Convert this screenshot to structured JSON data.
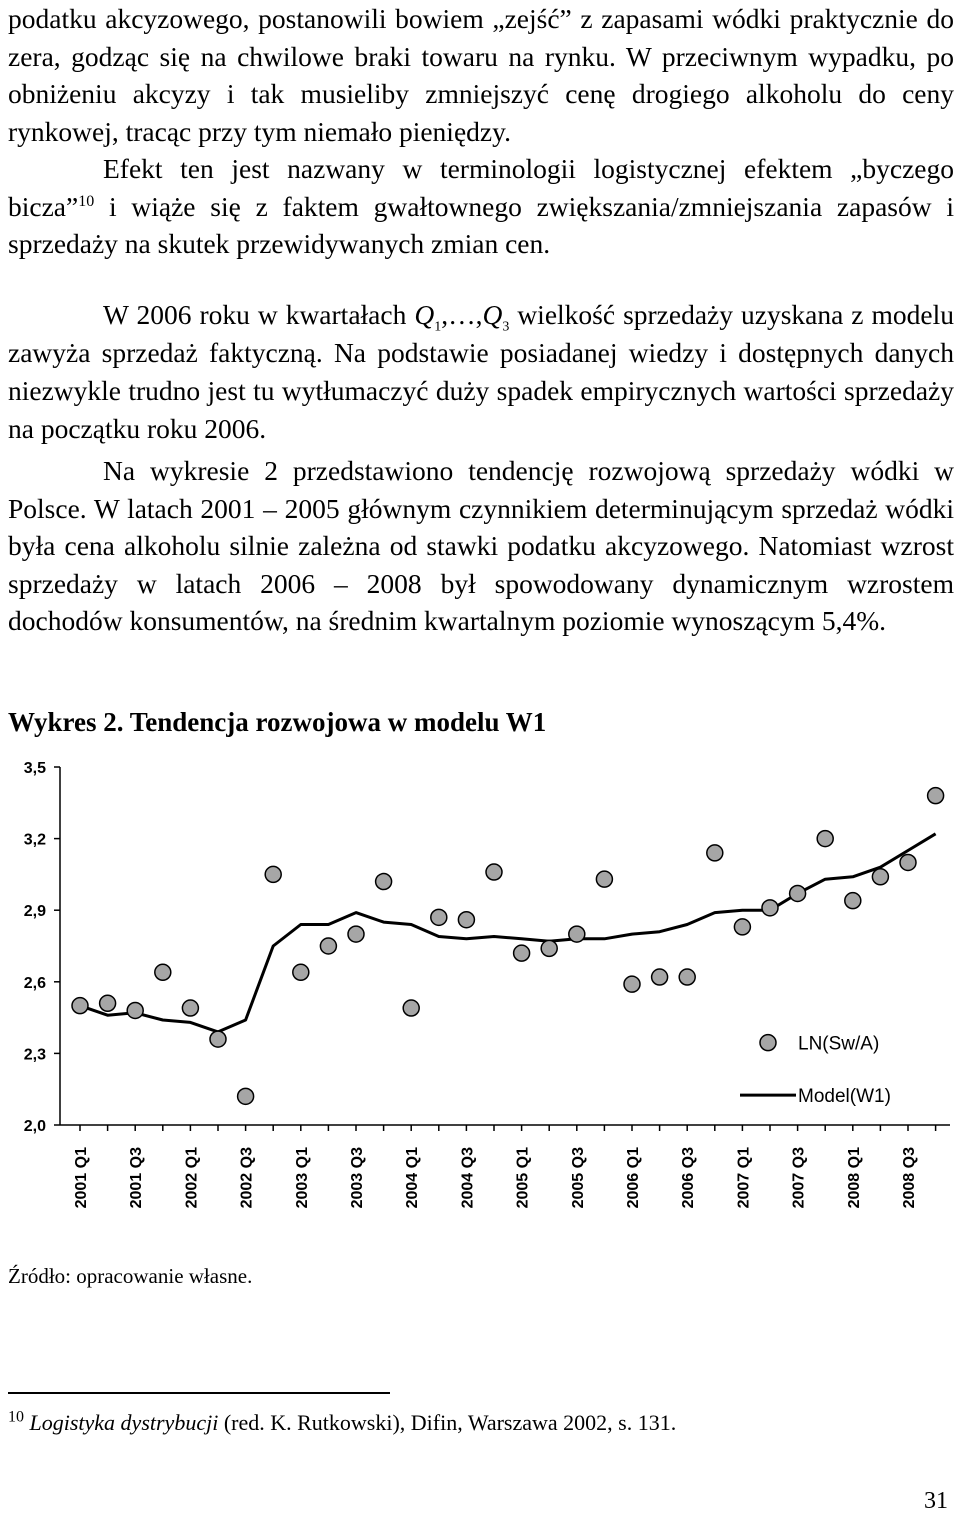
{
  "text": {
    "p1": "podatku akcyzowego, postanowili bowiem „zejść” z zapasami wódki praktycznie do zera, godząc się na chwilowe braki towaru na rynku. W przeciwnym wypadku, po obniżeniu akcyzy i tak musieliby zmniejszyć cenę drogiego alkoholu do ceny rynkowej, tracąc przy tym niemało pieniędzy.",
    "p2a": "Efekt ten jest nazwany w terminologii logistycznej efektem „byczego bicza”",
    "p2_fnref": "10",
    "p2b": " i wiąże się z faktem gwałtownego zwiększania/zmniejszania zapasów i sprzedaży na skutek przewidywanych zmian cen.",
    "p3a": "W 2006 roku w kwartałach ",
    "p3_q1": "Q",
    "p3_sub1": "1",
    "p3_mid": ",…,",
    "p3_q3": "Q",
    "p3_sub3": "3",
    "p3b": " wielkość sprzedaży uzyskana z modelu zawyża sprzedaż faktyczną. Na podstawie posiadanej wiedzy i dostępnych danych niezwykle trudno jest tu wytłumaczyć duży spadek empirycznych wartości sprzedaży na początku roku 2006.",
    "p4": "Na wykresie 2 przedstawiono tendencję rozwojową sprzedaży wódki w Polsce. W latach 2001 – 2005 głównym czynnikiem determinującym sprzedaż wódki była cena alkoholu silnie zależna od stawki podatku akcyzowego. Natomiast wzrost sprzedaży w latach 2006 – 2008 był spowodowany dynamicznym wzrostem dochodów konsumentów, na średnim kwartalnym poziomie wynoszącym 5,4%.",
    "figure_heading": "Wykres 2. Tendencja rozwojowa w modelu W1",
    "source": "Źródło: opracowanie własne.",
    "footnote_num": "10",
    "footnote_title": "Logistyka dystrybucji",
    "footnote_rest": " (red. K. Rutkowski), Difin, Warszawa 2002, s. 131.",
    "page_number": "31"
  },
  "chart_data": {
    "type": "line",
    "title": "Tendencja rozwojowa w modelu W1",
    "xlabel": "",
    "ylabel": "",
    "ylim": [
      2.0,
      3.5
    ],
    "yticks": [
      2.0,
      2.3,
      2.6,
      2.9,
      3.2,
      3.5
    ],
    "ytick_labels": [
      "2,0",
      "2,3",
      "2,6",
      "2,9",
      "3,2",
      "3,5"
    ],
    "grid": false,
    "legend_position": "bottom-right",
    "categories": [
      "2001 Q1",
      "2001 Q2",
      "2001 Q3",
      "2001 Q4",
      "2002 Q1",
      "2002 Q2",
      "2002 Q3",
      "2002 Q4",
      "2003 Q1",
      "2003 Q2",
      "2003 Q3",
      "2003 Q4",
      "2004 Q1",
      "2004 Q2",
      "2004 Q3",
      "2004 Q4",
      "2005 Q1",
      "2005 Q2",
      "2005 Q3",
      "2005 Q4",
      "2006 Q1",
      "2006 Q2",
      "2006 Q3",
      "2006 Q4",
      "2007 Q1",
      "2007 Q2",
      "2007 Q3",
      "2007 Q4",
      "2008 Q1",
      "2008 Q2",
      "2008 Q3",
      "2008 Q4"
    ],
    "x_tick_labels": [
      "2001 Q1",
      "2001 Q3",
      "2002 Q1",
      "2002 Q3",
      "2003 Q1",
      "2003 Q3",
      "2004 Q1",
      "2004 Q3",
      "2005 Q1",
      "2005 Q3",
      "2006 Q1",
      "2006 Q3",
      "2007 Q1",
      "2007 Q3",
      "2008 Q1",
      "2008 Q3"
    ],
    "series": [
      {
        "name": "LN(Sw/A)",
        "style": "markers",
        "values": [
          2.5,
          2.51,
          2.48,
          2.64,
          2.49,
          2.36,
          2.12,
          3.05,
          2.64,
          2.75,
          2.8,
          3.02,
          2.49,
          2.87,
          2.86,
          3.06,
          2.72,
          2.74,
          2.8,
          3.03,
          2.59,
          2.62,
          2.62,
          3.14,
          2.83,
          2.91,
          2.97,
          3.2,
          2.94,
          3.04,
          3.1,
          3.38
        ]
      },
      {
        "name": "Model(W1)",
        "style": "line",
        "values": [
          2.5,
          2.46,
          2.47,
          2.44,
          2.43,
          2.39,
          2.44,
          2.75,
          2.84,
          2.84,
          2.89,
          2.85,
          2.84,
          2.79,
          2.78,
          2.79,
          2.78,
          2.77,
          2.78,
          2.78,
          2.8,
          2.81,
          2.84,
          2.89,
          2.9,
          2.9,
          2.97,
          3.03,
          3.04,
          3.08,
          3.15,
          3.22
        ]
      }
    ]
  }
}
